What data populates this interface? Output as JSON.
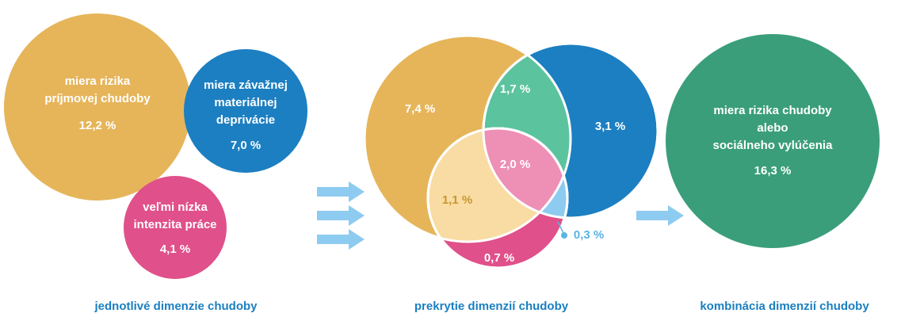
{
  "panels": [
    {
      "caption": "jednotlivé dimenzie chudoby",
      "circles": [
        {
          "lines": [
            "miera rizika",
            "príjmovej chudoby"
          ],
          "value": "12,2 %"
        },
        {
          "lines": [
            "miera závažnej",
            "materiálnej",
            "deprivácie"
          ],
          "value": "7,0 %"
        },
        {
          "lines": [
            "veľmi nízka",
            "intenzita práce"
          ],
          "value": "4,1 %"
        }
      ]
    },
    {
      "caption": "prekrytie dimenzií chudoby",
      "regions": [
        "7,4 %",
        "1,7 %",
        "3,1 %",
        "2,0 %",
        "1,1 %",
        "0,7 %",
        "0,3 %"
      ]
    },
    {
      "caption": "kombinácia dimenzií chudoby",
      "circles": [
        {
          "lines": [
            "miera rizika chudoby",
            "alebo",
            "sociálneho vylúčenia"
          ],
          "value": "16,3 %"
        }
      ]
    }
  ]
}
